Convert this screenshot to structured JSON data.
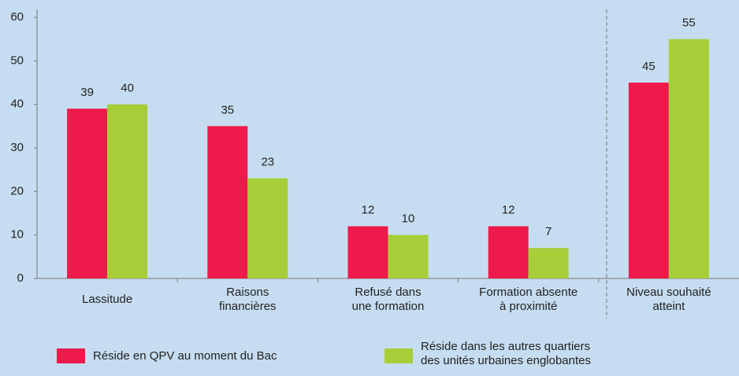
{
  "chart_data": {
    "type": "bar",
    "categories": [
      "Lassitude",
      "Raisons\nfinancières",
      "Refusé dans\nune formation",
      "Formation absente\nà proximité",
      "Niveau souhaité\natteint"
    ],
    "series": [
      {
        "name": "Réside en QPV au moment du Bac",
        "color": "#ee1a4b",
        "values": [
          39,
          35,
          12,
          12,
          45
        ]
      },
      {
        "name": "Réside dans les autres quartiers\ndes unités urbaines englobantes",
        "color": "#a6ce39",
        "values": [
          40,
          23,
          10,
          7,
          55
        ]
      }
    ],
    "ylim": [
      0,
      60
    ],
    "yticks": [
      0,
      10,
      20,
      30,
      40,
      50,
      60
    ],
    "legend": "bottom"
  }
}
